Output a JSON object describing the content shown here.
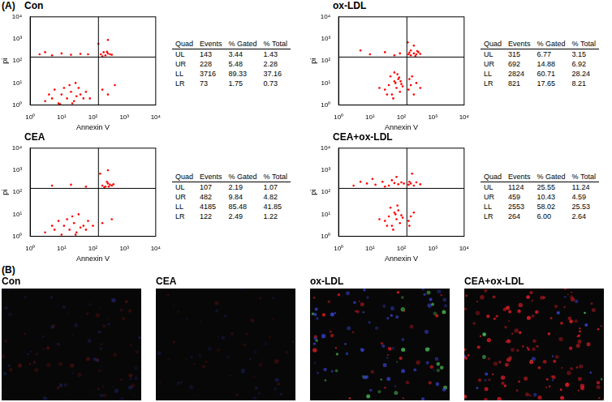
{
  "panel_labels": [
    "(A)",
    "(B)"
  ],
  "chart_data": [
    {
      "type": "scatter",
      "title": "Con",
      "x_label": "Annexin V",
      "y_label": "pi",
      "log": true,
      "grid": false,
      "color": "#ff0000",
      "xlim": [
        1,
        10000
      ],
      "ylim": [
        1,
        10000
      ],
      "xticks": [
        {
          "value": 1,
          "label": "10⁰"
        },
        {
          "value": 10,
          "label": "10¹"
        },
        {
          "value": 100,
          "label": "10²"
        },
        {
          "value": 1000,
          "label": "10³"
        },
        {
          "value": 10000,
          "label": "10⁴"
        }
      ],
      "yticks": [
        {
          "value": 1,
          "label": "10⁰"
        },
        {
          "value": 10,
          "label": "10¹"
        },
        {
          "value": 100,
          "label": "10²"
        },
        {
          "value": 1000,
          "label": "10³"
        },
        {
          "value": 10000,
          "label": "10⁴"
        }
      ],
      "gate_x": 150,
      "gate_y": 150,
      "x": [
        3,
        5,
        8,
        10,
        15,
        20,
        25,
        30,
        12,
        6,
        40,
        50,
        18,
        9,
        35,
        60,
        4,
        22,
        80,
        28,
        180,
        250,
        300,
        220,
        350,
        200,
        280,
        400,
        2,
        5,
        10,
        20,
        40,
        70,
        3,
        200,
        300,
        500,
        150,
        300
      ],
      "values": [
        1.5,
        2,
        1.2,
        3,
        2,
        4,
        1.5,
        2.5,
        6,
        5,
        3,
        2,
        8,
        1.1,
        6,
        4,
        3,
        1.2,
        2,
        10,
        200,
        180,
        220,
        250,
        200,
        160,
        260,
        190,
        200,
        180,
        220,
        190,
        210,
        200,
        250,
        5,
        3,
        8,
        600,
        900
      ],
      "table": {
        "columns": [
          "Quad",
          "Events",
          "% Gated",
          "% Total"
        ],
        "rows": [
          [
            "UL",
            "143",
            "3.44",
            "1.43"
          ],
          [
            "UR",
            "228",
            "5.48",
            "2.28"
          ],
          [
            "LL",
            "3716",
            "89.33",
            "37.16"
          ],
          [
            "LR",
            "73",
            "1.75",
            "0.73"
          ]
        ]
      }
    },
    {
      "type": "scatter",
      "title": "ox-LDL",
      "x_label": "Annexin V",
      "y_label": "pi",
      "log": true,
      "grid": false,
      "color": "#ff0000",
      "xlim": [
        1,
        10000
      ],
      "ylim": [
        1,
        10000
      ],
      "xticks": [
        {
          "value": 1,
          "label": "10⁰"
        },
        {
          "value": 10,
          "label": "10¹"
        },
        {
          "value": 100,
          "label": "10²"
        },
        {
          "value": 1000,
          "label": "10³"
        },
        {
          "value": 10000,
          "label": "10⁴"
        }
      ],
      "yticks": [
        {
          "value": 1,
          "label": "10⁰"
        },
        {
          "value": 10,
          "label": "10¹"
        },
        {
          "value": 100,
          "label": "10²"
        },
        {
          "value": 1000,
          "label": "10³"
        },
        {
          "value": 10000,
          "label": "10⁴"
        }
      ],
      "gate_x": 150,
      "gate_y": 150,
      "x": [
        30,
        40,
        50,
        60,
        70,
        80,
        90,
        100,
        45,
        55,
        65,
        75,
        35,
        110,
        85,
        20,
        95,
        60,
        170,
        200,
        250,
        180,
        300,
        400,
        220,
        170,
        200,
        250,
        300,
        350,
        200,
        280,
        400,
        180,
        320,
        250,
        160,
        10,
        30,
        60,
        5,
        90
      ],
      "values": [
        5,
        8,
        3,
        12,
        6,
        15,
        4,
        9,
        20,
        2,
        10,
        25,
        3,
        7,
        18,
        6,
        12,
        30,
        5,
        8,
        3,
        15,
        10,
        6,
        20,
        200,
        180,
        220,
        200,
        250,
        300,
        170,
        210,
        240,
        280,
        500,
        700,
        200,
        250,
        180,
        300,
        220
      ],
      "table": {
        "columns": [
          "Quad",
          "Events",
          "% Gated",
          "% Total"
        ],
        "rows": [
          [
            "UL",
            "315",
            "6.77",
            "3.15"
          ],
          [
            "UR",
            "692",
            "14.88",
            "6.92"
          ],
          [
            "LL",
            "2824",
            "60.71",
            "28.24"
          ],
          [
            "LR",
            "821",
            "17.65",
            "8.21"
          ]
        ]
      }
    },
    {
      "type": "scatter",
      "title": "CEA",
      "x_label": "Annexin V",
      "y_label": "pi",
      "log": true,
      "grid": false,
      "color": "#ff0000",
      "xlim": [
        1,
        10000
      ],
      "ylim": [
        1,
        10000
      ],
      "xticks": [
        {
          "value": 1,
          "label": "10⁰"
        },
        {
          "value": 10,
          "label": "10¹"
        },
        {
          "value": 100,
          "label": "10²"
        },
        {
          "value": 1000,
          "label": "10³"
        },
        {
          "value": 10000,
          "label": "10⁴"
        }
      ],
      "yticks": [
        {
          "value": 1,
          "label": "10⁰"
        },
        {
          "value": 10,
          "label": "10¹"
        },
        {
          "value": 100,
          "label": "10²"
        },
        {
          "value": 1000,
          "label": "10³"
        },
        {
          "value": 10000,
          "label": "10⁴"
        }
      ],
      "gate_x": 150,
      "gate_y": 150,
      "x": [
        3,
        6,
        10,
        12,
        18,
        25,
        30,
        40,
        15,
        8,
        50,
        60,
        22,
        70,
        35,
        100,
        5,
        28,
        200,
        250,
        300,
        350,
        400,
        280,
        230,
        450,
        320,
        5,
        20,
        60,
        170,
        300,
        200,
        400
      ],
      "values": [
        1.5,
        2,
        1.2,
        3,
        2,
        4,
        1.5,
        2.5,
        6,
        5,
        3,
        2,
        8,
        5,
        10,
        3,
        3,
        1.2,
        200,
        180,
        250,
        220,
        200,
        300,
        170,
        230,
        180,
        200,
        220,
        180,
        700,
        1000,
        4,
        6
      ],
      "table": {
        "columns": [
          "Quad",
          "Events",
          "% Gated",
          "% Total"
        ],
        "rows": [
          [
            "UL",
            "107",
            "2.19",
            "1.07"
          ],
          [
            "UR",
            "482",
            "9.84",
            "4.82"
          ],
          [
            "LL",
            "4185",
            "85.48",
            "41.85"
          ],
          [
            "LR",
            "122",
            "2.49",
            "1.22"
          ]
        ]
      }
    },
    {
      "type": "scatter",
      "title": "CEA+ox-LDL",
      "x_label": "Annexin V",
      "y_label": "pi",
      "log": true,
      "grid": false,
      "color": "#ff0000",
      "xlim": [
        1,
        10000
      ],
      "ylim": [
        1,
        10000
      ],
      "xticks": [
        {
          "value": 1,
          "label": "10⁰"
        },
        {
          "value": 10,
          "label": "10¹"
        },
        {
          "value": 100,
          "label": "10²"
        },
        {
          "value": 1000,
          "label": "10³"
        },
        {
          "value": 10000,
          "label": "10⁴"
        }
      ],
      "yticks": [
        {
          "value": 1,
          "label": "10⁰"
        },
        {
          "value": 10,
          "label": "10¹"
        },
        {
          "value": 100,
          "label": "10²"
        },
        {
          "value": 1000,
          "label": "10³"
        },
        {
          "value": 10000,
          "label": "10⁴"
        }
      ],
      "gate_x": 150,
      "gate_y": 150,
      "x": [
        30,
        40,
        50,
        60,
        70,
        80,
        90,
        100,
        45,
        55,
        65,
        75,
        35,
        110,
        20,
        170,
        200,
        250,
        180,
        3,
        8,
        15,
        25,
        40,
        60,
        80,
        100,
        12,
        50,
        120,
        5,
        30,
        70,
        170,
        200,
        250,
        300,
        180,
        400,
        220
      ],
      "values": [
        5,
        8,
        3,
        12,
        6,
        15,
        4,
        9,
        20,
        2,
        10,
        25,
        3,
        7,
        6,
        5,
        8,
        12,
        3,
        200,
        250,
        220,
        300,
        200,
        260,
        230,
        280,
        400,
        350,
        250,
        300,
        180,
        500,
        220,
        250,
        200,
        280,
        300,
        230,
        700
      ],
      "table": {
        "columns": [
          "Quad",
          "Events",
          "% Gated",
          "% Total"
        ],
        "rows": [
          [
            "UL",
            "1124",
            "25.55",
            "11.24"
          ],
          [
            "UR",
            "459",
            "10.43",
            "4.59"
          ],
          [
            "LL",
            "2553",
            "58.02",
            "25.53"
          ],
          [
            "LR",
            "264",
            "6.00",
            "2.64"
          ]
        ]
      }
    }
  ],
  "images": [
    {
      "title": "Con"
    },
    {
      "title": "CEA"
    },
    {
      "title": "ox-LDL"
    },
    {
      "title": "CEA+ox-LDL"
    }
  ]
}
